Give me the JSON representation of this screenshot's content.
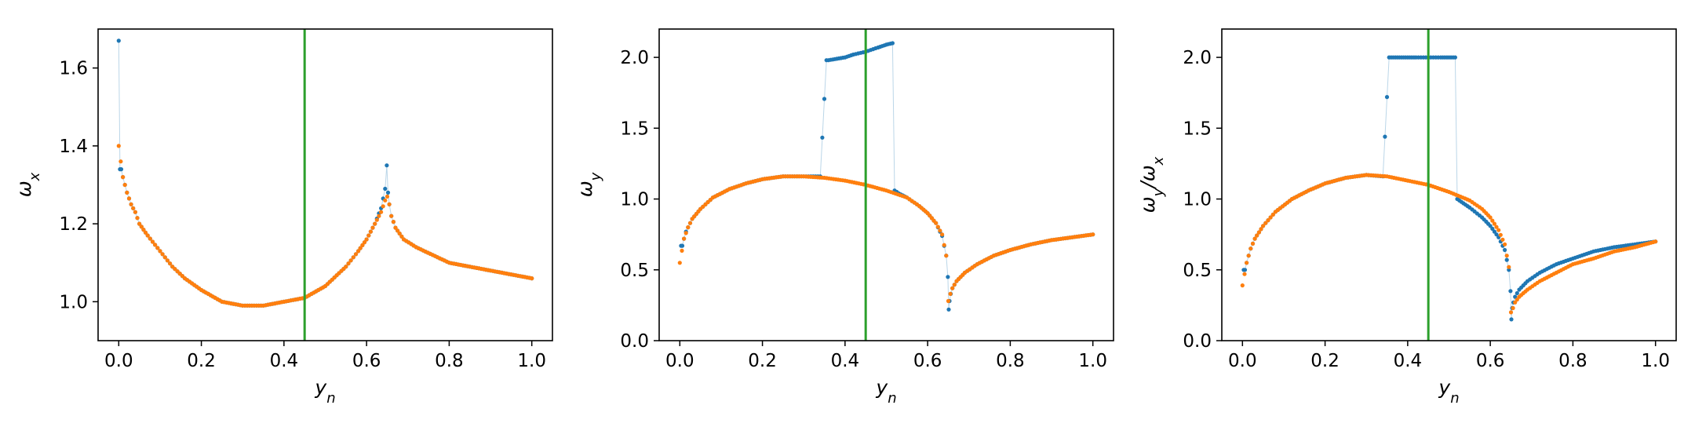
{
  "colors": {
    "series_blue": "#1f77b4",
    "series_orange": "#ff7f0e",
    "vline_green": "#2ca02c",
    "axes": "#000000"
  },
  "chart_data": [
    {
      "type": "scatter",
      "xlabel": "y_n",
      "ylabel": "ω_x",
      "xlim": [
        -0.05,
        1.05
      ],
      "ylim": [
        0.9,
        1.7
      ],
      "xticks": [
        "0.0",
        "0.2",
        "0.4",
        "0.6",
        "0.8",
        "1.0"
      ],
      "yticks": [
        "1.0",
        "1.2",
        "1.4",
        "1.6"
      ],
      "vline_x": 0.45,
      "grid": false,
      "legend": "none",
      "series": [
        {
          "color": "blue",
          "x": [
            0.0,
            0.003,
            0.006,
            0.01,
            0.015,
            0.02,
            0.03,
            0.04,
            0.05,
            0.07,
            0.1,
            0.13,
            0.16,
            0.2,
            0.25,
            0.3,
            0.35,
            0.4,
            0.45,
            0.5,
            0.55,
            0.58,
            0.6,
            0.62,
            0.635,
            0.645,
            0.649,
            0.652,
            0.655,
            0.66,
            0.67,
            0.69,
            0.72,
            0.76,
            0.8,
            0.85,
            0.9,
            0.95,
            1.0
          ],
          "y": [
            1.67,
            1.34,
            1.34,
            1.32,
            1.3,
            1.28,
            1.25,
            1.23,
            1.2,
            1.17,
            1.13,
            1.09,
            1.06,
            1.03,
            1.0,
            0.99,
            0.99,
            1.0,
            1.01,
            1.04,
            1.09,
            1.13,
            1.16,
            1.2,
            1.24,
            1.29,
            1.35,
            1.28,
            1.25,
            1.22,
            1.19,
            1.16,
            1.14,
            1.12,
            1.1,
            1.09,
            1.08,
            1.07,
            1.06
          ]
        },
        {
          "color": "orange",
          "x": [
            0.0,
            0.01,
            0.02,
            0.03,
            0.04,
            0.05,
            0.07,
            0.1,
            0.13,
            0.16,
            0.2,
            0.25,
            0.3,
            0.35,
            0.4,
            0.45,
            0.5,
            0.55,
            0.58,
            0.6,
            0.62,
            0.635,
            0.645,
            0.65,
            0.655,
            0.66,
            0.67,
            0.69,
            0.72,
            0.76,
            0.8,
            0.85,
            0.9,
            0.95,
            1.0
          ],
          "y": [
            1.4,
            1.32,
            1.28,
            1.25,
            1.23,
            1.2,
            1.17,
            1.13,
            1.09,
            1.06,
            1.03,
            1.0,
            0.99,
            0.99,
            1.0,
            1.01,
            1.04,
            1.09,
            1.13,
            1.16,
            1.2,
            1.23,
            1.26,
            1.27,
            1.25,
            1.22,
            1.19,
            1.16,
            1.14,
            1.12,
            1.1,
            1.09,
            1.08,
            1.07,
            1.06
          ]
        }
      ]
    },
    {
      "type": "scatter",
      "xlabel": "y_n",
      "ylabel": "ω_y",
      "xlim": [
        -0.05,
        1.05
      ],
      "ylim": [
        0.0,
        2.2
      ],
      "xticks": [
        "0.0",
        "0.2",
        "0.4",
        "0.6",
        "0.8",
        "1.0"
      ],
      "yticks": [
        "0.0",
        "0.5",
        "1.0",
        "1.5",
        "2.0"
      ],
      "vline_x": 0.45,
      "grid": false,
      "legend": "none",
      "series": [
        {
          "color": "blue",
          "x": [
            0.003,
            0.006,
            0.01,
            0.015,
            0.02,
            0.03,
            0.05,
            0.08,
            0.12,
            0.16,
            0.2,
            0.25,
            0.3,
            0.34,
            0.355,
            0.36,
            0.38,
            0.4,
            0.42,
            0.45,
            0.48,
            0.5,
            0.515,
            0.52,
            0.53,
            0.55,
            0.58,
            0.6,
            0.62,
            0.635,
            0.645,
            0.649,
            0.651,
            0.653,
            0.656,
            0.66,
            0.67,
            0.69,
            0.72,
            0.76,
            0.8,
            0.85,
            0.9,
            0.95,
            1.0
          ],
          "y": [
            0.67,
            0.67,
            0.72,
            0.77,
            0.8,
            0.86,
            0.93,
            1.01,
            1.07,
            1.11,
            1.14,
            1.16,
            1.16,
            1.16,
            1.98,
            1.98,
            1.99,
            2.0,
            2.02,
            2.04,
            2.07,
            2.09,
            2.1,
            1.06,
            1.04,
            1.01,
            0.95,
            0.9,
            0.83,
            0.74,
            0.6,
            0.45,
            0.22,
            0.28,
            0.33,
            0.37,
            0.42,
            0.48,
            0.54,
            0.6,
            0.64,
            0.68,
            0.71,
            0.73,
            0.75
          ]
        },
        {
          "color": "orange",
          "x": [
            0.0,
            0.01,
            0.02,
            0.03,
            0.05,
            0.08,
            0.12,
            0.16,
            0.2,
            0.25,
            0.3,
            0.35,
            0.4,
            0.45,
            0.5,
            0.55,
            0.58,
            0.6,
            0.62,
            0.635,
            0.645,
            0.65,
            0.655,
            0.66,
            0.67,
            0.69,
            0.72,
            0.76,
            0.8,
            0.85,
            0.9,
            0.95,
            1.0
          ],
          "y": [
            0.55,
            0.72,
            0.8,
            0.86,
            0.93,
            1.01,
            1.07,
            1.11,
            1.14,
            1.16,
            1.16,
            1.15,
            1.13,
            1.1,
            1.06,
            1.01,
            0.95,
            0.9,
            0.83,
            0.75,
            0.6,
            0.28,
            0.33,
            0.37,
            0.42,
            0.48,
            0.54,
            0.6,
            0.64,
            0.68,
            0.71,
            0.73,
            0.75
          ]
        }
      ]
    },
    {
      "type": "scatter",
      "xlabel": "y_n",
      "ylabel": "ω_y/ω_x",
      "xlim": [
        -0.05,
        1.05
      ],
      "ylim": [
        0.0,
        2.2
      ],
      "xticks": [
        "0.0",
        "0.2",
        "0.4",
        "0.6",
        "0.8",
        "1.0"
      ],
      "yticks": [
        "0.0",
        "0.5",
        "1.0",
        "1.5",
        "2.0"
      ],
      "vline_x": 0.45,
      "grid": false,
      "legend": "none",
      "series": [
        {
          "color": "blue",
          "x": [
            0.003,
            0.006,
            0.01,
            0.015,
            0.02,
            0.03,
            0.05,
            0.08,
            0.12,
            0.16,
            0.2,
            0.25,
            0.3,
            0.34,
            0.355,
            0.36,
            0.38,
            0.4,
            0.42,
            0.45,
            0.48,
            0.5,
            0.515,
            0.52,
            0.53,
            0.55,
            0.58,
            0.6,
            0.62,
            0.635,
            0.645,
            0.649,
            0.651,
            0.653,
            0.656,
            0.66,
            0.67,
            0.69,
            0.72,
            0.76,
            0.8,
            0.85,
            0.9,
            0.95,
            1.0
          ],
          "y": [
            0.5,
            0.5,
            0.55,
            0.6,
            0.65,
            0.72,
            0.81,
            0.91,
            1.0,
            1.06,
            1.11,
            1.15,
            1.17,
            1.16,
            2.0,
            2.0,
            2.0,
            2.0,
            2.0,
            2.0,
            2.0,
            2.0,
            2.0,
            1.0,
            0.98,
            0.94,
            0.87,
            0.81,
            0.73,
            0.64,
            0.5,
            0.35,
            0.15,
            0.23,
            0.27,
            0.31,
            0.36,
            0.42,
            0.48,
            0.54,
            0.58,
            0.63,
            0.66,
            0.68,
            0.7
          ]
        },
        {
          "color": "orange",
          "x": [
            0.0,
            0.01,
            0.02,
            0.03,
            0.05,
            0.08,
            0.12,
            0.16,
            0.2,
            0.25,
            0.3,
            0.35,
            0.4,
            0.45,
            0.5,
            0.55,
            0.58,
            0.6,
            0.62,
            0.635,
            0.645,
            0.65,
            0.655,
            0.66,
            0.67,
            0.69,
            0.72,
            0.76,
            0.8,
            0.85,
            0.9,
            0.95,
            1.0
          ],
          "y": [
            0.39,
            0.55,
            0.65,
            0.72,
            0.81,
            0.91,
            1.0,
            1.06,
            1.11,
            1.15,
            1.17,
            1.16,
            1.13,
            1.1,
            1.05,
            0.99,
            0.93,
            0.87,
            0.78,
            0.68,
            0.52,
            0.2,
            0.23,
            0.27,
            0.31,
            0.36,
            0.42,
            0.48,
            0.54,
            0.58,
            0.63,
            0.66,
            0.7
          ]
        }
      ]
    }
  ]
}
